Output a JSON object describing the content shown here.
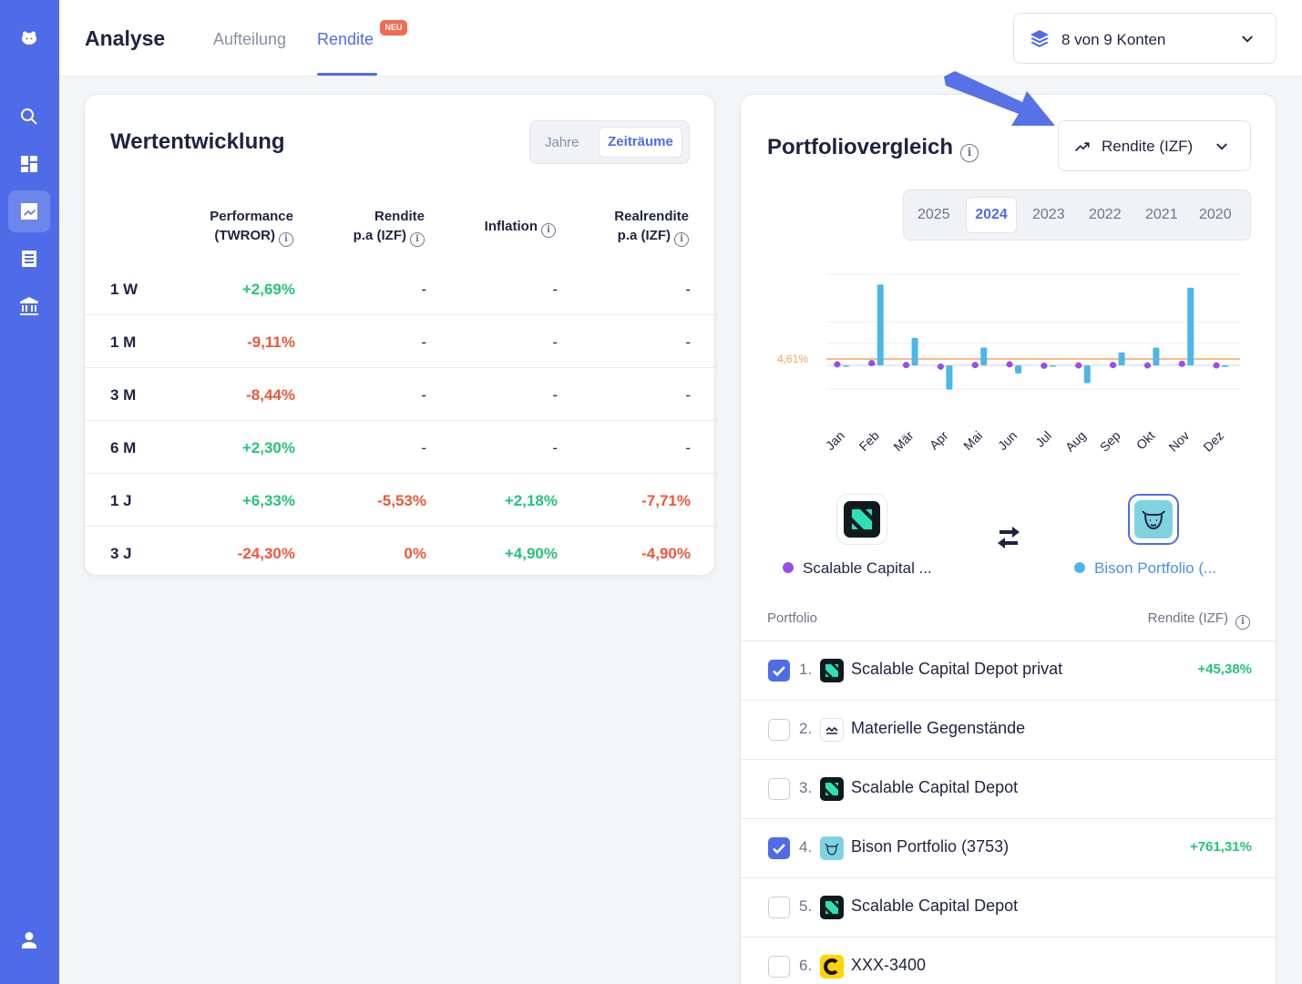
{
  "header": {
    "title": "Analyse",
    "tabs": [
      {
        "label": "Aufteilung",
        "active": false
      },
      {
        "label": "Rendite",
        "active": true,
        "badge": "NEU"
      }
    ],
    "accounts_label": "8 von 9 Konten"
  },
  "sidebar": {
    "items": [
      {
        "icon": "hippo-logo-icon"
      },
      {
        "icon": "search-icon"
      },
      {
        "icon": "dashboard-icon"
      },
      {
        "icon": "chart-line-icon",
        "active": true
      },
      {
        "icon": "document-list-icon"
      },
      {
        "icon": "bank-icon"
      },
      {
        "icon": "user-icon"
      }
    ]
  },
  "wertentwicklung": {
    "title": "Wertentwicklung",
    "toggle": {
      "option1": "Jahre",
      "option2": "Zeiträume",
      "active": "Zeiträume"
    },
    "columns": [
      {
        "line1": "Performance",
        "line2": "(TWROR)"
      },
      {
        "line1": "Rendite",
        "line2": "p.a (IZF)"
      },
      {
        "line1": "Inflation",
        "line2": ""
      },
      {
        "line1": "Realrendite",
        "line2": "p.a (IZF)"
      }
    ],
    "rows": [
      {
        "label": "1 W",
        "performance": "+2,69%",
        "rendite": "-",
        "inflation": "-",
        "realrendite": "-"
      },
      {
        "label": "1 M",
        "performance": "-9,11%",
        "rendite": "-",
        "inflation": "-",
        "realrendite": "-"
      },
      {
        "label": "3 M",
        "performance": "-8,44%",
        "rendite": "-",
        "inflation": "-",
        "realrendite": "-"
      },
      {
        "label": "6 M",
        "performance": "+2,30%",
        "rendite": "-",
        "inflation": "-",
        "realrendite": "-"
      },
      {
        "label": "1 J",
        "performance": "+6,33%",
        "rendite": "-5,53%",
        "inflation": "+2,18%",
        "realrendite": "-7,71%"
      },
      {
        "label": "3 J",
        "performance": "-24,30%",
        "rendite": "0%",
        "inflation": "+4,90%",
        "realrendite": "-4,90%"
      }
    ]
  },
  "portfoliovergleich": {
    "title": "Portfoliovergleich",
    "metric_dropdown": "Rendite (IZF)",
    "years": [
      "2025",
      "2024",
      "2023",
      "2022",
      "2021",
      "2020"
    ],
    "active_year": "2024",
    "reference_label": "4,61%",
    "compare_left": "Scalable Capital ...",
    "compare_right": "Bison Portfolio (...",
    "list_header_left": "Portfolio",
    "list_header_right": "Rendite (IZF)",
    "portfolios": [
      {
        "num": "1.",
        "name": "Scalable Capital Depot privat",
        "value": "+45,38%",
        "checked": true,
        "icon": "scalable-logo-icon"
      },
      {
        "num": "2.",
        "name": "Materielle Gegenstände",
        "value": "",
        "checked": false,
        "icon": "chart-wave-icon"
      },
      {
        "num": "3.",
        "name": "Scalable Capital Depot",
        "value": "",
        "checked": false,
        "icon": "scalable-logo-icon"
      },
      {
        "num": "4.",
        "name": "Bison Portfolio (3753)",
        "value": "+761,31%",
        "checked": true,
        "icon": "bison-logo-icon"
      },
      {
        "num": "5.",
        "name": "Scalable Capital Depot",
        "value": "",
        "checked": false,
        "icon": "scalable-logo-icon"
      },
      {
        "num": "6.",
        "name": "XXX-3400",
        "value": "",
        "checked": false,
        "icon": "c-logo-icon"
      }
    ]
  },
  "chart_data": {
    "type": "bar",
    "categories": [
      "Jan",
      "Feb",
      "Mär",
      "Apr",
      "Mai",
      "Jun",
      "Jul",
      "Aug",
      "Sep",
      "Okt",
      "Nov",
      "Dez"
    ],
    "series": [
      {
        "name": "Scalable Capital ...",
        "color": "#9b4de8",
        "values": [
          0.3,
          0.7,
          0.1,
          -0.4,
          0.1,
          0.3,
          -0.1,
          0.0,
          0.1,
          0.0,
          0.5,
          0.0
        ]
      },
      {
        "name": "Bison Portfolio (...",
        "color": "#4ab6ea",
        "values": [
          -0.2,
          25.0,
          8.5,
          -7.5,
          5.5,
          -2.5,
          0.0,
          -5.5,
          4.0,
          5.5,
          24.0,
          -0.5
        ]
      }
    ],
    "reference_line": {
      "label": "4,61%",
      "color": "#f5a35c"
    },
    "ylim": [
      -10,
      30
    ],
    "grid": true
  }
}
